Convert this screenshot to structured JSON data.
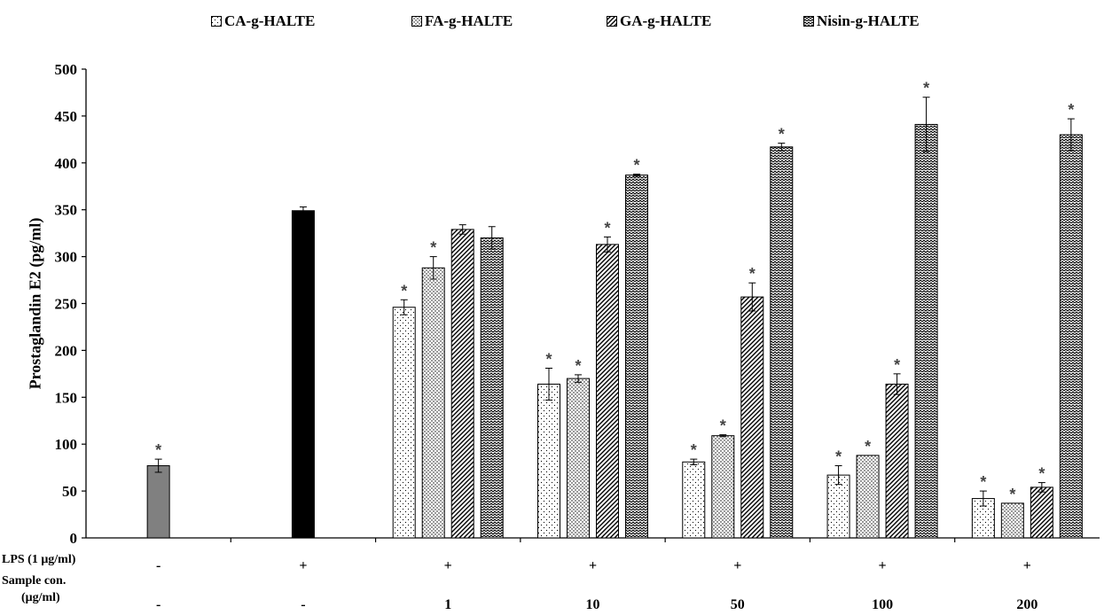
{
  "chart_data": {
    "type": "bar",
    "ylabel": "Prostaglandin E2 (pg/ml)",
    "ylim": [
      0,
      500
    ],
    "yticks": [
      0,
      50,
      100,
      150,
      200,
      250,
      300,
      350,
      400,
      450,
      500
    ],
    "grid": false,
    "legend_position": "top",
    "row_labels": {
      "lps": "LPS (1 μg/ml)",
      "sample_line1": "Sample con.",
      "sample_line2": "(μg/ml)"
    },
    "groups": [
      {
        "lps": "-",
        "conc": "-",
        "bars": [
          {
            "series": null,
            "value": 77,
            "error": 7,
            "star": true,
            "fill": "#808080"
          }
        ]
      },
      {
        "lps": "+",
        "conc": "-",
        "bars": [
          {
            "series": null,
            "value": 349,
            "error": 4,
            "star": false,
            "fill": "#000000"
          }
        ]
      },
      {
        "lps": "+",
        "conc": "1",
        "bars": [
          {
            "series": "CA-g-HALTE",
            "value": 246,
            "error": 8,
            "star": true
          },
          {
            "series": "FA-g-HALTE",
            "value": 288,
            "error": 12,
            "star": true
          },
          {
            "series": "GA-g-HALTE",
            "value": 329,
            "error": 5,
            "star": false
          },
          {
            "series": "Nisin-g-HALTE",
            "value": 320,
            "error": 12,
            "star": false
          }
        ]
      },
      {
        "lps": "+",
        "conc": "10",
        "bars": [
          {
            "series": "CA-g-HALTE",
            "value": 164,
            "error": 17,
            "star": true
          },
          {
            "series": "FA-g-HALTE",
            "value": 170,
            "error": 4,
            "star": true
          },
          {
            "series": "GA-g-HALTE",
            "value": 313,
            "error": 8,
            "star": true
          },
          {
            "series": "Nisin-g-HALTE",
            "value": 387,
            "error": 1,
            "star": true
          }
        ]
      },
      {
        "lps": "+",
        "conc": "50",
        "bars": [
          {
            "series": "CA-g-HALTE",
            "value": 81,
            "error": 3,
            "star": true
          },
          {
            "series": "FA-g-HALTE",
            "value": 109,
            "error": 1,
            "star": true
          },
          {
            "series": "GA-g-HALTE",
            "value": 257,
            "error": 15,
            "star": true
          },
          {
            "series": "Nisin-g-HALTE",
            "value": 417,
            "error": 4,
            "star": true
          }
        ]
      },
      {
        "lps": "+",
        "conc": "100",
        "bars": [
          {
            "series": "CA-g-HALTE",
            "value": 67,
            "error": 10,
            "star": true
          },
          {
            "series": "FA-g-HALTE",
            "value": 88,
            "error": 0,
            "star": true
          },
          {
            "series": "GA-g-HALTE",
            "value": 164,
            "error": 11,
            "star": true
          },
          {
            "series": "Nisin-g-HALTE",
            "value": 441,
            "error": 29,
            "star": true
          }
        ]
      },
      {
        "lps": "+",
        "conc": "200",
        "bars": [
          {
            "series": "CA-g-HALTE",
            "value": 42,
            "error": 8,
            "star": true
          },
          {
            "series": "FA-g-HALTE",
            "value": 37,
            "error": 0,
            "star": true
          },
          {
            "series": "GA-g-HALTE",
            "value": 54,
            "error": 5,
            "star": true
          },
          {
            "series": "Nisin-g-HALTE",
            "value": 430,
            "error": 17,
            "star": true
          }
        ]
      }
    ],
    "series": [
      {
        "name": "CA-g-HALTE",
        "pattern": "dots"
      },
      {
        "name": "FA-g-HALTE",
        "pattern": "dense-dots"
      },
      {
        "name": "GA-g-HALTE",
        "pattern": "diagonal"
      },
      {
        "name": "Nisin-g-HALTE",
        "pattern": "zigzag"
      }
    ],
    "star_symbol": "*"
  }
}
